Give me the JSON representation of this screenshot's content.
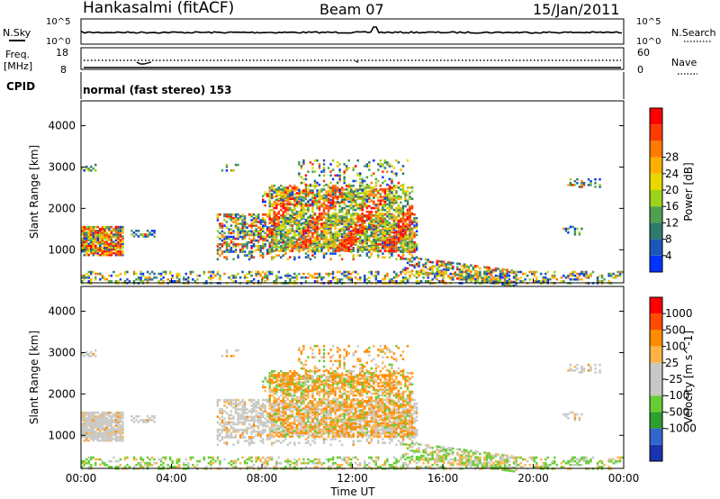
{
  "header": {
    "station": "Hankasalmi (fitACF)",
    "beam": "Beam 07",
    "date": "15/Jan/2011"
  },
  "strips": {
    "nsky": {
      "left_label": "N.Sky",
      "right_label": "N.Search",
      "top_tick": "10^5",
      "bottom_tick": "10^0"
    },
    "freq": {
      "left_label_1": "Freq.",
      "left_label_2": "[MHz]",
      "right_label": "Nave",
      "left_top": "18",
      "left_bottom": "8",
      "right_top": "60",
      "right_bottom": "0"
    },
    "cpid": {
      "label": "CPID",
      "program": "normal (fast stereo) 153"
    }
  },
  "colors": {
    "power_scale": [
      "#0033ff",
      "#1a57b8",
      "#2f7a6a",
      "#4fa04f",
      "#9bd21a",
      "#e8d800",
      "#ffb000",
      "#ff7a00",
      "#ff3a00",
      "#ff0000"
    ],
    "velocity_scale": [
      "#ff0000",
      "#ff4a00",
      "#ff8c00",
      "#ffb347",
      "#c8c8c4",
      "#c8c8c4",
      "#66cc33",
      "#2e9e2e",
      "#3366cc",
      "#1a33b0"
    ]
  },
  "chart_data": [
    {
      "type": "heatmap",
      "title": "Power",
      "xlabel": "",
      "ylabel": "Slant Range [km]",
      "ylim": [
        200,
        4600
      ],
      "x_ticks": [
        "00:00",
        "04:00",
        "08:00",
        "12:00",
        "16:00",
        "20:00",
        "00:00"
      ],
      "y_ticks": [
        1000,
        2000,
        3000,
        4000
      ],
      "colorbar": {
        "label": "Power [dB]",
        "ticks": [
          4,
          8,
          12,
          16,
          20,
          24,
          28
        ]
      }
    },
    {
      "type": "heatmap",
      "title": "Velocity",
      "xlabel": "Time UT",
      "ylabel": "Slant Range [km]",
      "ylim": [
        200,
        4600
      ],
      "x_ticks": [
        "00:00",
        "04:00",
        "08:00",
        "12:00",
        "16:00",
        "20:00",
        "00:00"
      ],
      "y_ticks": [
        1000,
        2000,
        3000,
        4000
      ],
      "colorbar": {
        "label": "Velocity [m s^-1]",
        "ticks": [
          "1000",
          "500",
          "100",
          "25",
          "-25",
          "-100",
          "-500",
          "-1000"
        ]
      }
    }
  ]
}
